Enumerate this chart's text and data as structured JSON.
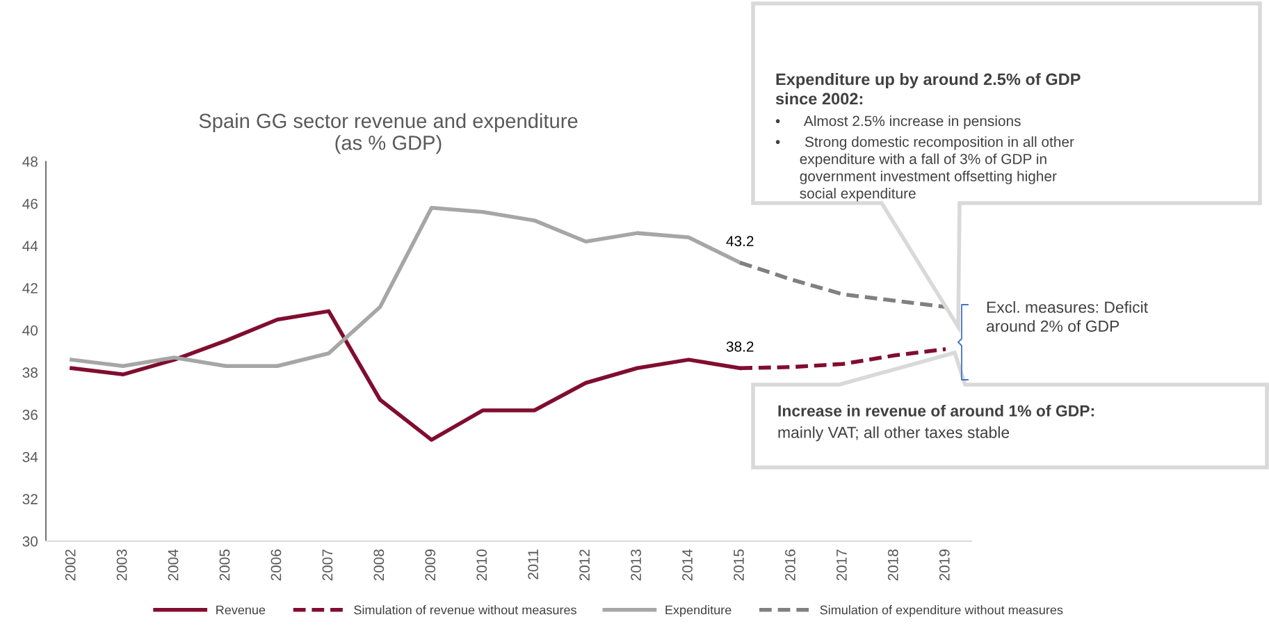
{
  "chart_data": {
    "type": "line",
    "title": "Spain GG sector revenue and expenditure\n(as % GDP)",
    "categories": [
      "2002",
      "2003",
      "2004",
      "2005",
      "2006",
      "2007",
      "2008",
      "2009",
      "2010",
      "2011",
      "2012",
      "2013",
      "2014",
      "2015",
      "2016",
      "2017",
      "2018",
      "2019"
    ],
    "series": [
      {
        "name": "Revenue",
        "color": "#800d2f",
        "line_style": "solid",
        "values": [
          38.2,
          37.9,
          38.6,
          39.5,
          40.5,
          40.9,
          36.7,
          34.8,
          36.2,
          36.2,
          37.5,
          38.2,
          38.6,
          38.2,
          null,
          null,
          null,
          null
        ]
      },
      {
        "name": "Simulation of revenue without measures",
        "color": "#800d2f",
        "line_style": "dashed",
        "values": [
          null,
          null,
          null,
          null,
          null,
          null,
          null,
          null,
          null,
          null,
          null,
          null,
          null,
          38.2,
          38.25,
          38.4,
          38.8,
          39.1
        ]
      },
      {
        "name": "Expenditure",
        "color": "#a6a6a6",
        "line_style": "solid",
        "values": [
          38.6,
          38.3,
          38.7,
          38.3,
          38.3,
          38.9,
          41.1,
          45.8,
          45.6,
          45.2,
          44.2,
          44.6,
          44.4,
          43.2,
          null,
          null,
          null,
          null
        ]
      },
      {
        "name": "Simulation of expenditure without measures",
        "color": "#808080",
        "line_style": "dashed",
        "values": [
          null,
          null,
          null,
          null,
          null,
          null,
          null,
          null,
          null,
          null,
          null,
          null,
          null,
          43.2,
          42.4,
          41.7,
          41.4,
          41.1
        ]
      }
    ],
    "ylim": [
      30,
      48
    ],
    "yticks": [
      30,
      32,
      34,
      36,
      38,
      40,
      42,
      44,
      46,
      48
    ],
    "grid": false,
    "legend": "bottom",
    "marker": "none",
    "annotations": [
      {
        "text": "43.2",
        "x": "2015",
        "y": 43.2
      },
      {
        "text": "38.2",
        "x": "2015",
        "y": 38.2
      },
      "Expenditure up by around 2.5% of GDP\nsince 2002:",
      "•\tAlmost 2.5% increase in pensions",
      "•\tStrong domestic recomposition in all other\n\texpenditure with a fall of 3% of GDP in\n\tgovernment investment offsetting higher\n\tsocial expenditure",
      "Excl. measures: Deficit\naround 2% of GDP",
      "Increase in revenue of around 1% of GDP:",
      "mainly VAT; all other taxes stable"
    ]
  }
}
